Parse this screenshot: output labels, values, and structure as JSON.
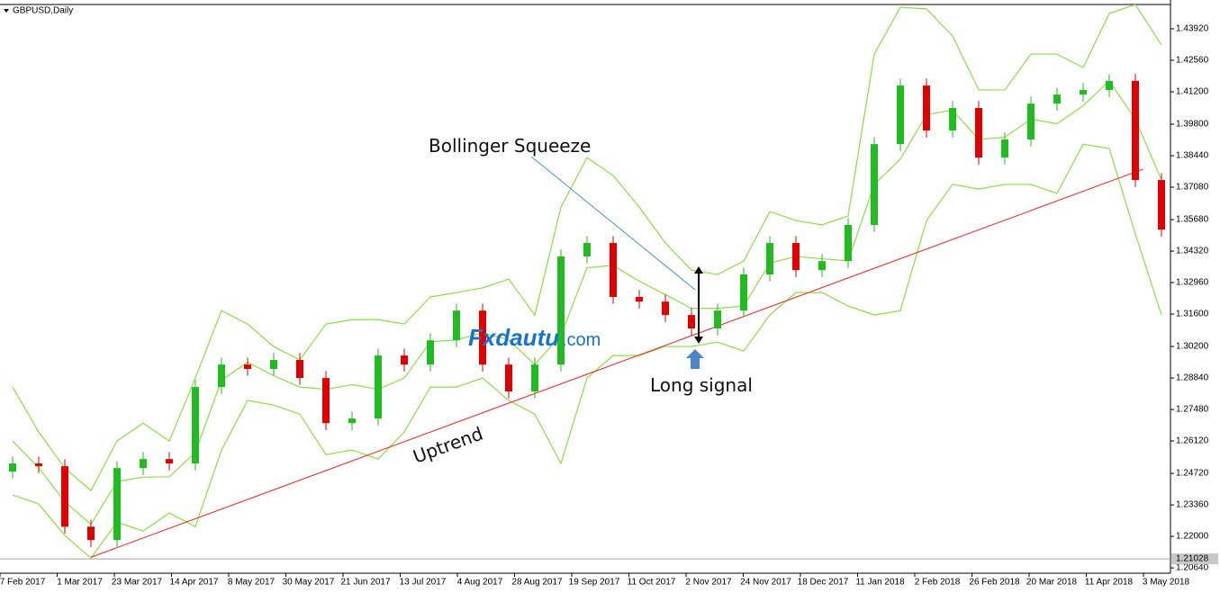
{
  "chart_data": {
    "type": "candlestick",
    "title": "GBPUSD,Daily",
    "ylim": [
      1.2041,
      1.4497
    ],
    "yticks": [
      {
        "value": 1.4392,
        "label": "1.43920"
      },
      {
        "value": 1.4256,
        "label": "1.42560"
      },
      {
        "value": 1.412,
        "label": "1.41200"
      },
      {
        "value": 1.398,
        "label": "1.39800"
      },
      {
        "value": 1.3844,
        "label": "1.38440"
      },
      {
        "value": 1.3708,
        "label": "1.37080"
      },
      {
        "value": 1.3568,
        "label": "1.35680"
      },
      {
        "value": 1.3432,
        "label": "1.34320"
      },
      {
        "value": 1.3296,
        "label": "1.32960"
      },
      {
        "value": 1.316,
        "label": "1.31600"
      },
      {
        "value": 1.302,
        "label": "1.30200"
      },
      {
        "value": 1.2884,
        "label": "1.28840"
      },
      {
        "value": 1.2748,
        "label": "1.27480"
      },
      {
        "value": 1.2612,
        "label": "1.26120"
      },
      {
        "value": 1.2472,
        "label": "1.24720"
      },
      {
        "value": 1.2336,
        "label": "1.23360"
      },
      {
        "value": 1.22,
        "label": "1.22000"
      },
      {
        "value": 1.2064,
        "label": "1.20640"
      }
    ],
    "current_price": 1.21028,
    "x_labels": [
      "7 Feb 2017",
      "1 Mar 2017",
      "23 Mar 2017",
      "14 Apr 2017",
      "8 May 2017",
      "30 May 2017",
      "21 Jun 2017",
      "13 Jul 2017",
      "4 Aug 2017",
      "28 Aug 2017",
      "19 Sep 2017",
      "11 Oct 2017",
      "2 Nov 2017",
      "24 Nov 2017",
      "18 Dec 2017",
      "11 Jan 2018",
      "2 Feb 2018",
      "26 Feb 2018",
      "20 Mar 2018",
      "11 Apr 2018",
      "3 May 2018"
    ],
    "up_color": "#22bb22",
    "down_color": "#e00000",
    "candles": {
      "open": [
        1.248,
        1.2515,
        1.2503,
        1.2242,
        1.2184,
        1.2495,
        1.2534,
        1.2515,
        1.2845,
        1.2942,
        1.2923,
        1.2962,
        1.2884,
        1.2689,
        1.2709,
        1.2981,
        1.2942,
        1.3047,
        1.3175,
        1.2942,
        1.2826,
        1.2942,
        1.3409,
        1.3467,
        1.3234,
        1.3214,
        1.3156,
        1.3098,
        1.3175,
        1.3331,
        1.3467,
        1.335,
        1.3389,
        1.3545,
        1.3894,
        1.4147,
        1.3953,
        1.405,
        1.3836,
        1.3914,
        1.4069,
        1.4108,
        1.4128,
        1.4167,
        1.3739
      ],
      "high": [
        1.2545,
        1.2545,
        1.2533,
        1.2272,
        1.2525,
        1.2564,
        1.2564,
        1.2875,
        1.2972,
        1.2972,
        1.2992,
        1.2992,
        1.2914,
        1.2739,
        1.3011,
        1.3011,
        1.3077,
        1.3205,
        1.3205,
        1.2972,
        1.2972,
        1.3439,
        1.3497,
        1.3497,
        1.3264,
        1.3244,
        1.3186,
        1.3205,
        1.3361,
        1.3497,
        1.3497,
        1.3419,
        1.3575,
        1.3924,
        1.4177,
        1.4177,
        1.408,
        1.408,
        1.3944,
        1.4099,
        1.4138,
        1.4158,
        1.4197,
        1.4197,
        1.3769
      ],
      "low": [
        1.245,
        1.2473,
        1.2212,
        1.2154,
        1.2154,
        1.2465,
        1.2485,
        1.2485,
        1.2815,
        1.2893,
        1.2893,
        1.2854,
        1.2659,
        1.2659,
        1.2679,
        1.2912,
        1.2912,
        1.3017,
        1.2912,
        1.2796,
        1.2796,
        1.2912,
        1.3379,
        1.3204,
        1.3184,
        1.3126,
        1.3068,
        1.3068,
        1.3145,
        1.3301,
        1.332,
        1.332,
        1.3359,
        1.3515,
        1.3864,
        1.3923,
        1.3923,
        1.3806,
        1.3806,
        1.3884,
        1.4039,
        1.4078,
        1.4098,
        1.3709,
        1.3495
      ],
      "close": [
        1.2515,
        1.2503,
        1.2242,
        1.2184,
        1.2495,
        1.2534,
        1.2515,
        1.2845,
        1.2942,
        1.2923,
        1.2962,
        1.2884,
        1.2689,
        1.2709,
        1.2981,
        1.2942,
        1.3047,
        1.3175,
        1.2942,
        1.2826,
        1.2942,
        1.3409,
        1.3467,
        1.3234,
        1.3214,
        1.3156,
        1.3098,
        1.3175,
        1.3331,
        1.3467,
        1.335,
        1.3389,
        1.3545,
        1.3894,
        1.4147,
        1.3953,
        1.405,
        1.3836,
        1.3914,
        1.4069,
        1.4108,
        1.4128,
        1.4167,
        1.3739,
        1.3525
      ]
    },
    "bands": {
      "color": "#88e040",
      "upper": [
        1.2845,
        1.2651,
        1.2495,
        1.2398,
        1.2612,
        1.2689,
        1.2612,
        1.2884,
        1.3175,
        1.3117,
        1.302,
        1.2962,
        1.3117,
        1.3136,
        1.3136,
        1.3117,
        1.3234,
        1.3253,
        1.3273,
        1.3311,
        1.3156,
        1.3622,
        1.3836,
        1.3758,
        1.3622,
        1.3467,
        1.335,
        1.3331,
        1.3389,
        1.3603,
        1.3564,
        1.3545,
        1.3584,
        1.4283,
        1.4485,
        1.4478,
        1.4361,
        1.4128,
        1.4128,
        1.4283,
        1.4283,
        1.4225,
        1.4458,
        1.4497,
        1.4322
      ],
      "middle": [
        1.2612,
        1.2496,
        1.235,
        1.2252,
        1.2437,
        1.2456,
        1.2457,
        1.2563,
        1.2874,
        1.2952,
        1.2894,
        1.2845,
        1.2835,
        1.2855,
        1.2835,
        1.2884,
        1.304,
        1.3049,
        1.3079,
        1.3049,
        1.2942,
        1.3069,
        1.336,
        1.337,
        1.3302,
        1.3244,
        1.3185,
        1.3185,
        1.3195,
        1.338,
        1.3409,
        1.3399,
        1.339,
        1.372,
        1.383,
        1.4021,
        1.4041,
        1.3914,
        1.3924,
        1.4002,
        1.3982,
        1.406,
        1.4167,
        1.4002,
        1.3739
      ],
      "lower": [
        1.2379,
        1.234,
        1.2204,
        1.2106,
        1.2262,
        1.2223,
        1.2301,
        1.2242,
        1.2573,
        1.2787,
        1.2767,
        1.2728,
        1.2553,
        1.2573,
        1.2534,
        1.2651,
        1.2845,
        1.2845,
        1.2884,
        1.2787,
        1.2728,
        1.2515,
        1.2884,
        1.2981,
        1.2981,
        1.302,
        1.302,
        1.3039,
        1.3,
        1.3156,
        1.3253,
        1.3253,
        1.3195,
        1.3156,
        1.3175,
        1.3564,
        1.372,
        1.37,
        1.372,
        1.372,
        1.3681,
        1.3894,
        1.3875,
        1.3506,
        1.3156
      ]
    },
    "trendline": {
      "from": {
        "index": 3,
        "price": 1.211
      },
      "to": {
        "index": 43.3,
        "price": 1.3786
      },
      "color": "#ff2020"
    },
    "annotations": {
      "squeeze": "Bollinger Squeeze",
      "signal": "Long signal",
      "trend": "Uptrend",
      "brand": "Fxdautu",
      "brand_suffix": ".com"
    }
  }
}
